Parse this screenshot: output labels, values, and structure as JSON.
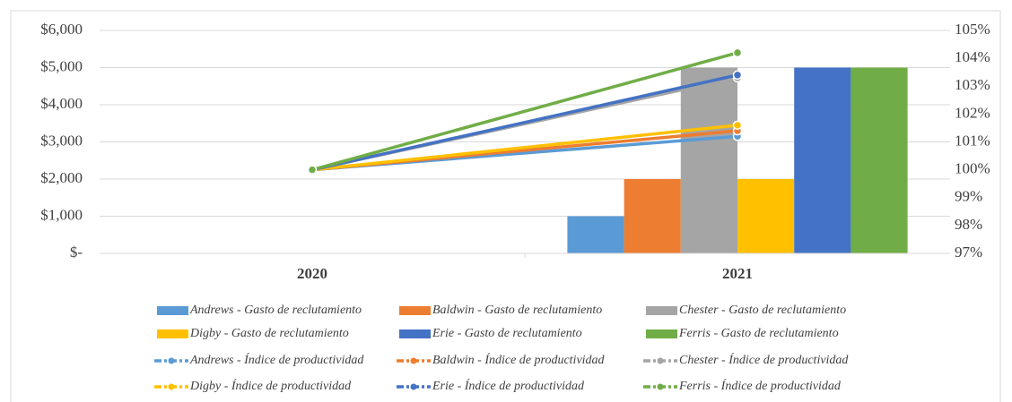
{
  "chart_data": {
    "type": "bar",
    "categories": [
      "2020",
      "2021"
    ],
    "ylim": [
      0,
      6000
    ],
    "yticks": [
      {
        "value": 0,
        "label": "$-"
      },
      {
        "value": 1000,
        "label": "$1,000"
      },
      {
        "value": 2000,
        "label": "$2,000"
      },
      {
        "value": 3000,
        "label": "$3,000"
      },
      {
        "value": 4000,
        "label": "$4,000"
      },
      {
        "value": 5000,
        "label": "$5,000"
      },
      {
        "value": 6000,
        "label": "$6,000"
      }
    ],
    "y2lim": [
      97,
      105
    ],
    "y2ticks": [
      {
        "value": 97,
        "label": "97%"
      },
      {
        "value": 98,
        "label": "98%"
      },
      {
        "value": 99,
        "label": "99%"
      },
      {
        "value": 100,
        "label": "100%"
      },
      {
        "value": 101,
        "label": "101%"
      },
      {
        "value": 102,
        "label": "102%"
      },
      {
        "value": 103,
        "label": "103%"
      },
      {
        "value": 104,
        "label": "104%"
      },
      {
        "value": 105,
        "label": "105%"
      }
    ],
    "grid": true,
    "series": [
      {
        "name": "Andrews - Gasto de reclutamiento",
        "type": "bar",
        "color": "#5b9bd5",
        "values": [
          null,
          1000
        ]
      },
      {
        "name": "Baldwin - Gasto de reclutamiento",
        "type": "bar",
        "color": "#ed7d31",
        "values": [
          null,
          2000
        ]
      },
      {
        "name": "Chester - Gasto de reclutamiento",
        "type": "bar",
        "color": "#a5a5a5",
        "values": [
          null,
          5000
        ]
      },
      {
        "name": "Digby - Gasto de reclutamiento",
        "type": "bar",
        "color": "#ffc000",
        "values": [
          null,
          2000
        ]
      },
      {
        "name": "Erie - Gasto de reclutamiento",
        "type": "bar",
        "color": "#4472c4",
        "values": [
          null,
          5000
        ]
      },
      {
        "name": "Ferris - Gasto de reclutamiento",
        "type": "bar",
        "color": "#70ad47",
        "values": [
          null,
          5000
        ]
      },
      {
        "name": "Andrews - Índice de productividad",
        "type": "line",
        "axis": "y2",
        "color": "#5b9bd5",
        "values": [
          100,
          101.2
        ]
      },
      {
        "name": "Baldwin - Índice de productividad",
        "type": "line",
        "axis": "y2",
        "color": "#ed7d31",
        "values": [
          100,
          101.4
        ]
      },
      {
        "name": "Chester - Índice de productividad",
        "type": "line",
        "axis": "y2",
        "color": "#a5a5a5",
        "values": [
          100,
          103.3
        ]
      },
      {
        "name": "Digby - Índice de productividad",
        "type": "line",
        "axis": "y2",
        "color": "#ffc000",
        "values": [
          100,
          101.6
        ]
      },
      {
        "name": "Erie - Índice de productividad",
        "type": "line",
        "axis": "y2",
        "color": "#4472c4",
        "values": [
          100,
          103.4
        ]
      },
      {
        "name": "Ferris - Índice de productividad",
        "type": "line",
        "axis": "y2",
        "color": "#70ad47",
        "values": [
          100,
          104.2
        ]
      }
    ]
  }
}
